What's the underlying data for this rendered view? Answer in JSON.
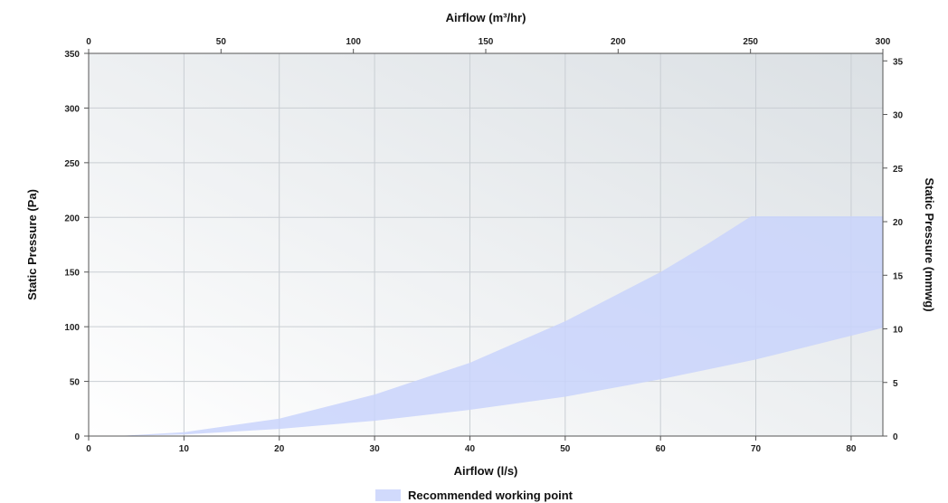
{
  "chart_data": {
    "type": "area",
    "title": "",
    "xlabel": "Airflow (l/s)",
    "x2label": "Airflow (m³/hr)",
    "ylabel": "Static Pressure (Pa)",
    "y2label": "Static Pressure (mmwg)",
    "xlim": [
      0,
      83.33
    ],
    "ylim": [
      0,
      350
    ],
    "x2lim": [
      0,
      300
    ],
    "y2lim": [
      0,
      35.7
    ],
    "x_ticks": [
      0,
      10,
      20,
      30,
      40,
      50,
      60,
      70,
      80
    ],
    "x2_ticks": [
      0,
      50,
      100,
      150,
      200,
      250,
      300
    ],
    "y_ticks": [
      0,
      50,
      100,
      150,
      200,
      250,
      300,
      350
    ],
    "y2_ticks": [
      0,
      5,
      10,
      15,
      20,
      25,
      30,
      35
    ],
    "grid": true,
    "legend": "bottom-center",
    "colors": {
      "band": "#c9d4fb",
      "band_opacity": 0.85,
      "grid": "#c9ced3",
      "axis": "#555555",
      "text": "#222222",
      "plot_bg_start": "#ffffff",
      "plot_bg_end": "#dbe0e4"
    },
    "series": [
      {
        "name": "Recommended working point",
        "upper": {
          "x": [
            3,
            10,
            20,
            30,
            40,
            50,
            60,
            65,
            69.5,
            70.5,
            83.33
          ],
          "y": [
            0,
            3.5,
            16,
            38,
            67,
            105,
            150,
            176,
            201,
            201,
            201
          ]
        },
        "lower": {
          "x": [
            3,
            10,
            20,
            30,
            40,
            50,
            60,
            70,
            83.33
          ],
          "y": [
            0,
            1.5,
            6.5,
            14,
            24,
            36,
            52,
            70,
            99
          ]
        }
      }
    ]
  }
}
